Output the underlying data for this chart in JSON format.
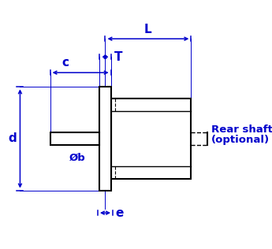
{
  "bg_color": "#ffffff",
  "line_color": "#0000cc",
  "body_color": "#000000",
  "label_L": "L",
  "label_T": "T",
  "label_c": "c",
  "label_d": "d",
  "label_b": "Øb",
  "label_e": "e",
  "label_rear_line1": "Rear shaft",
  "label_rear_line2": "(optional)",
  "font_size": 9.5,
  "font_size_label": 10,
  "font_size_large": 11
}
